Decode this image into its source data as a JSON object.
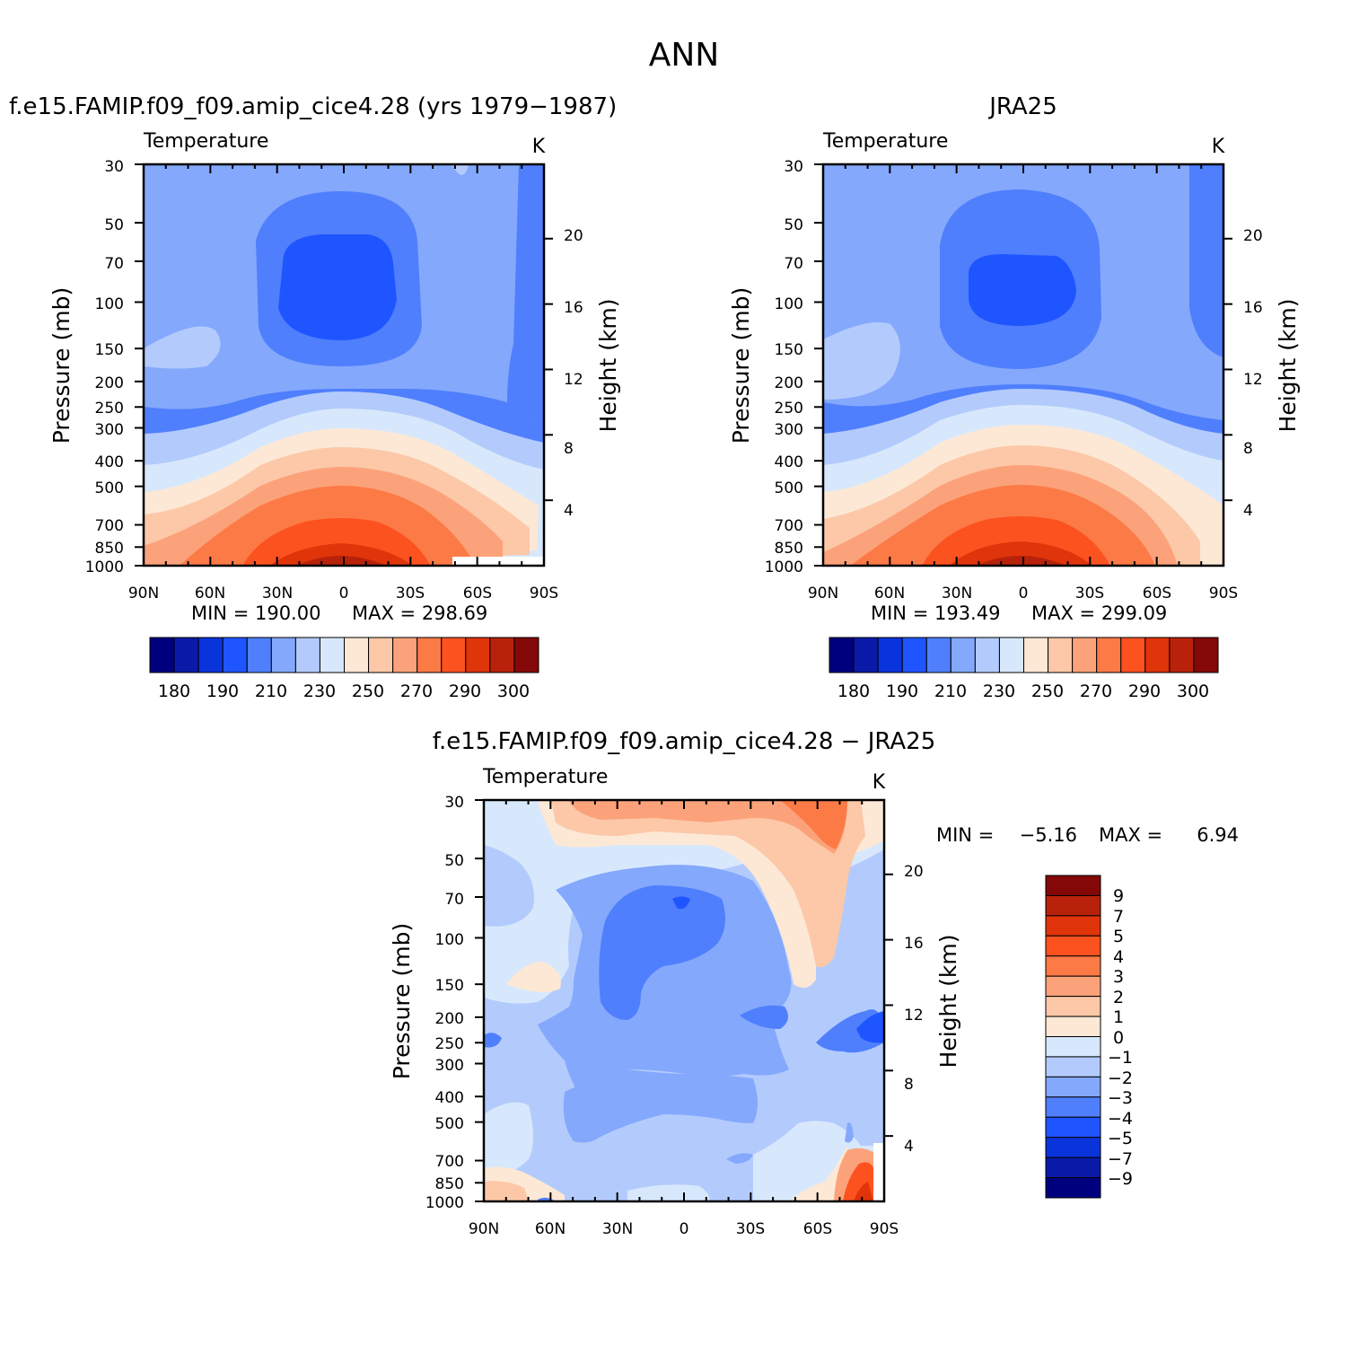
{
  "page": {
    "title": "ANN"
  },
  "chart_data": [
    {
      "id": "model",
      "type": "heatmap",
      "title": "f.e15.FAMIP.f09_f09.amip_cice4.28 (yrs 1979−1987)",
      "variable": "Temperature",
      "units": "K",
      "xlabel": "",
      "ylabel": "Pressure (mb)",
      "ylabel_right": "Height (km)",
      "x_ticks": [
        "90N",
        "60N",
        "30N",
        "0",
        "30S",
        "60S",
        "90S"
      ],
      "x_values": [
        90,
        60,
        30,
        0,
        -30,
        -60,
        -90
      ],
      "y_ticks": [
        30,
        50,
        70,
        100,
        150,
        200,
        250,
        300,
        400,
        500,
        700,
        850,
        1000
      ],
      "height_ticks": [
        20,
        16,
        12,
        8,
        4
      ],
      "ylim": [
        30,
        1000
      ],
      "min_label": "MIN = 190.00",
      "max_label": "MAX = 298.69",
      "min": 190.0,
      "max": 298.69,
      "levels": [
        180,
        190,
        200,
        210,
        220,
        230,
        240,
        250,
        260,
        270,
        280,
        290,
        300
      ],
      "colorbar_labels": [
        "180",
        "190",
        "210",
        "230",
        "250",
        "270",
        "290",
        "300"
      ]
    },
    {
      "id": "obs",
      "type": "heatmap",
      "title": "JRA25",
      "variable": "Temperature",
      "units": "K",
      "xlabel": "",
      "ylabel": "Pressure (mb)",
      "ylabel_right": "Height (km)",
      "x_ticks": [
        "90N",
        "60N",
        "30N",
        "0",
        "30S",
        "60S",
        "90S"
      ],
      "x_values": [
        90,
        60,
        30,
        0,
        -30,
        -60,
        -90
      ],
      "y_ticks": [
        30,
        50,
        70,
        100,
        150,
        200,
        250,
        300,
        400,
        500,
        700,
        850,
        1000
      ],
      "height_ticks": [
        20,
        16,
        12,
        8,
        4
      ],
      "ylim": [
        30,
        1000
      ],
      "min_label": "MIN = 193.49",
      "max_label": "MAX = 299.09",
      "min": 193.49,
      "max": 299.09,
      "levels": [
        180,
        190,
        200,
        210,
        220,
        230,
        240,
        250,
        260,
        270,
        280,
        290,
        300
      ],
      "colorbar_labels": [
        "180",
        "190",
        "210",
        "230",
        "250",
        "270",
        "290",
        "300"
      ]
    },
    {
      "id": "diff",
      "type": "heatmap",
      "title": "f.e15.FAMIP.f09_f09.amip_cice4.28 − JRA25",
      "variable": "Temperature",
      "units": "K",
      "xlabel": "",
      "ylabel": "Pressure (mb)",
      "ylabel_right": "Height (km)",
      "x_ticks": [
        "90N",
        "60N",
        "30N",
        "0",
        "30S",
        "60S",
        "90S"
      ],
      "x_values": [
        90,
        60,
        30,
        0,
        -30,
        -60,
        -90
      ],
      "y_ticks": [
        30,
        50,
        70,
        100,
        150,
        200,
        250,
        300,
        400,
        500,
        700,
        850,
        1000
      ],
      "height_ticks": [
        20,
        16,
        12,
        8,
        4
      ],
      "ylim": [
        30,
        1000
      ],
      "min_label": "MIN =",
      "min_value": "−5.16",
      "max_label": "MAX =",
      "max_value": "6.94",
      "min": -5.16,
      "max": 6.94,
      "levels": [
        -9,
        -7,
        -5,
        -4,
        -3,
        -2,
        -1,
        0,
        1,
        2,
        3,
        4,
        5,
        7,
        9
      ],
      "colorbar_labels": [
        "9",
        "7",
        "5",
        "4",
        "3",
        "2",
        "1",
        "0",
        "−1",
        "−2",
        "−3",
        "−4",
        "−5",
        "−7",
        "−9"
      ]
    }
  ],
  "palette": {
    "temperature": [
      "#00007f",
      "#0a1aa8",
      "#0a34db",
      "#1f55ff",
      "#4f7ffc",
      "#84a8fc",
      "#b3cbfc",
      "#d8e8fc",
      "#fde8d6",
      "#fcc8a8",
      "#fca27a",
      "#fc7a46",
      "#fc521f",
      "#e0340a",
      "#b8220a",
      "#850808"
    ],
    "difference_top_to_bottom": [
      "#850808",
      "#b8220a",
      "#e0340a",
      "#fc521f",
      "#fc7a46",
      "#fca27a",
      "#fcc8a8",
      "#fde8d6",
      "#d8e8fc",
      "#b3cbfc",
      "#84a8fc",
      "#4f7ffc",
      "#1f55ff",
      "#0a34db",
      "#0a1aa8",
      "#00007f"
    ]
  }
}
